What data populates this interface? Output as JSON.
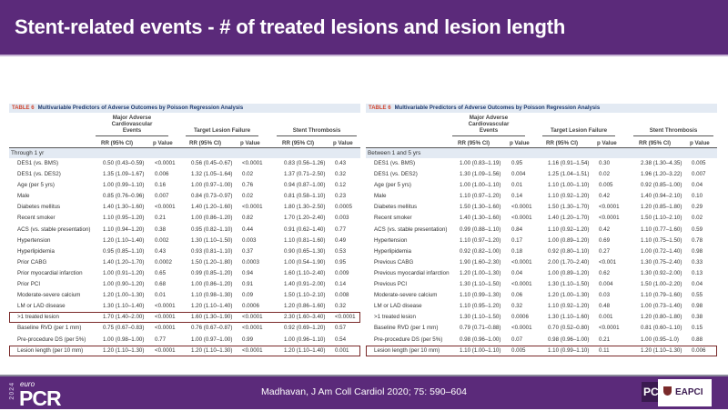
{
  "slide": {
    "title": "Stent-related events - # of treated lesions and lesion length",
    "citation": "Madhavan, J Am Coll Cardiol 2020; 75: 590–604",
    "logo_year": "2024",
    "logo_euro": "euro",
    "logo_pcr": "PCR",
    "pcr_badge": "PCR",
    "eapci": "EAPCI"
  },
  "tables": [
    {
      "table_no": "TABLE 6",
      "title": "Multivariable Predictors of Adverse Outcomes by Poisson Regression Analysis",
      "groups": [
        "Major Adverse Cardiovascular Events",
        "Target Lesion Failure",
        "Stent Thrombosis"
      ],
      "subheaders": [
        "RR (95% CI)",
        "p Value",
        "RR (95% CI)",
        "p Value",
        "RR (95% CI)",
        "p Value"
      ],
      "section": "Through 1 yr",
      "highlight": [
        13,
        16
      ],
      "rows": [
        [
          "DES1 (vs. BMS)",
          "0.50 (0.43–0.59)",
          "<0.0001",
          "0.56 (0.45–0.67)",
          "<0.0001",
          "0.83 (0.56–1.26)",
          "0.43"
        ],
        [
          "DES1 (vs. DES2)",
          "1.35 (1.09–1.67)",
          "0.006",
          "1.32 (1.05–1.64)",
          "0.02",
          "1.37 (0.71–2.50)",
          "0.32"
        ],
        [
          "Age (per 5 yrs)",
          "1.00 (0.99–1.10)",
          "0.16",
          "1.00 (0.97–1.00)",
          "0.76",
          "0.94 (0.87–1.00)",
          "0.12"
        ],
        [
          "Male",
          "0.85 (0.76–0.96)",
          "0.007",
          "0.84 (0.73–0.97)",
          "0.02",
          "0.81 (0.58–1.10)",
          "0.23"
        ],
        [
          "Diabetes mellitus",
          "1.40 (1.30–1.60)",
          "<0.0001",
          "1.40 (1.20–1.60)",
          "<0.0001",
          "1.80 (1.30–2.50)",
          "0.0005"
        ],
        [
          "Recent smoker",
          "1.10 (0.95–1.20)",
          "0.21",
          "1.00 (0.86–1.20)",
          "0.82",
          "1.70 (1.20–2.40)",
          "0.003"
        ],
        [
          "ACS (vs. stable presentation)",
          "1.10 (0.94–1.20)",
          "0.38",
          "0.95 (0.82–1.10)",
          "0.44",
          "0.91 (0.62–1.40)",
          "0.77"
        ],
        [
          "Hypertension",
          "1.20 (1.10–1.40)",
          "0.002",
          "1.30 (1.10–1.50)",
          "0.003",
          "1.10 (0.81–1.60)",
          "0.49"
        ],
        [
          "Hyperlipidemia",
          "0.95 (0.85–1.10)",
          "0.43",
          "0.93 (0.81–1.10)",
          "0.37",
          "0.90 (0.65–1.30)",
          "0.53"
        ],
        [
          "Prior CABG",
          "1.40 (1.20–1.70)",
          "0.0002",
          "1.50 (1.20–1.80)",
          "0.0003",
          "1.00 (0.54–1.90)",
          "0.95"
        ],
        [
          "Prior myocardial infarction",
          "1.00 (0.91–1.20)",
          "0.65",
          "0.99 (0.85–1.20)",
          "0.94",
          "1.60 (1.10–2.40)",
          "0.009"
        ],
        [
          "Prior PCI",
          "1.00 (0.90–1.20)",
          "0.68",
          "1.00 (0.86–1.20)",
          "0.91",
          "1.40 (0.91–2.00)",
          "0.14"
        ],
        [
          "Moderate-severe calcium",
          "1.20 (1.00–1.30)",
          "0.01",
          "1.10 (0.98–1.30)",
          "0.09",
          "1.50 (1.10–2.10)",
          "0.008"
        ],
        [
          "LM or LAD disease",
          "1.30 (1.10–1.40)",
          "<0.0001",
          "1.20 (1.10–1.40)",
          "0.0006",
          "1.20 (0.86–1.60)",
          "0.32"
        ],
        [
          ">1 treated lesion",
          "1.70 (1.40–2.00)",
          "<0.0001",
          "1.60 (1.30–1.90)",
          "<0.0001",
          "2.30 (1.60–3.40)",
          "<0.0001"
        ],
        [
          "Baseline RVD (per 1 mm)",
          "0.75 (0.67–0.83)",
          "<0.0001",
          "0.76 (0.67–0.87)",
          "<0.0001",
          "0.92 (0.69–1.20)",
          "0.57"
        ],
        [
          "Pre-procedure DS (per 5%)",
          "1.00 (0.98–1.00)",
          "0.77",
          "1.00 (0.97–1.00)",
          "0.99",
          "1.00 (0.96–1.10)",
          "0.54"
        ],
        [
          "Lesion length (per 10 mm)",
          "1.20 (1.10–1.30)",
          "<0.0001",
          "1.20 (1.10–1.30)",
          "<0.0001",
          "1.20 (1.10–1.40)",
          "0.001"
        ]
      ]
    },
    {
      "table_no": "TABLE 6",
      "title": "Multivariable Predictors of Adverse Outcomes by Poisson Regression Analysis",
      "groups": [
        "Major Adverse Cardiovascular Events",
        "Target Lesion Failure",
        "Stent Thrombosis"
      ],
      "subheaders": [
        "RR (95% CI)",
        "p Value",
        "RR (95% CI)",
        "p Value",
        "RR (95% CI)",
        "p Value"
      ],
      "section": "Between 1 and 5 yrs",
      "highlight": [
        16
      ],
      "rows": [
        [
          "DES1 (vs. BMS)",
          "1.00 (0.83–1.19)",
          "0.95",
          "1.16 (0.91–1.54)",
          "0.30",
          "2.38 (1.30–4.35)",
          "0.005"
        ],
        [
          "DES1 (vs. DES2)",
          "1.30 (1.09–1.56)",
          "0.004",
          "1.25 (1.04–1.51)",
          "0.02",
          "1.96 (1.20–3.22)",
          "0.007"
        ],
        [
          "Age (per 5 yrs)",
          "1.00 (1.00–1.10)",
          "0.01",
          "1.10 (1.00–1.10)",
          "0.005",
          "0.92 (0.85–1.00)",
          "0.04"
        ],
        [
          "Male",
          "1.10 (0.97–1.20)",
          "0.14",
          "1.10 (0.92–1.20)",
          "0.42",
          "1.40 (0.94–2.10)",
          "0.10"
        ],
        [
          "Diabetes mellitus",
          "1.50 (1.30–1.60)",
          "<0.0001",
          "1.50 (1.30–1.70)",
          "<0.0001",
          "1.20 (0.85–1.80)",
          "0.29"
        ],
        [
          "Recent smoker",
          "1.40 (1.30–1.60)",
          "<0.0001",
          "1.40 (1.20–1.70)",
          "<0.0001",
          "1.50 (1.10–2.10)",
          "0.02"
        ],
        [
          "ACS (vs. stable presentation)",
          "0.99 (0.88–1.10)",
          "0.84",
          "1.10 (0.92–1.20)",
          "0.42",
          "1.10 (0.77–1.60)",
          "0.59"
        ],
        [
          "Hypertension",
          "1.10 (0.97–1.20)",
          "0.17",
          "1.00 (0.89–1.20)",
          "0.69",
          "1.10 (0.75–1.50)",
          "0.78"
        ],
        [
          "Hyperlipidemia",
          "0.92 (0.82–1.00)",
          "0.18",
          "0.92 (0.80–1.10)",
          "0.27",
          "1.00 (0.72–1.40)",
          "0.98"
        ],
        [
          "Previous CABG",
          "1.90 (1.60–2.30)",
          "<0.0001",
          "2.00 (1.70–2.40)",
          "<0.001",
          "1.30 (0.75–2.40)",
          "0.33"
        ],
        [
          "Previous myocardial infarction",
          "1.20 (1.00–1.30)",
          "0.04",
          "1.00 (0.89–1.20)",
          "0.62",
          "1.30 (0.92–2.00)",
          "0.13"
        ],
        [
          "Previous PCI",
          "1.30 (1.10–1.50)",
          "<0.0001",
          "1.30 (1.10–1.50)",
          "0.004",
          "1.50 (1.00–2.20)",
          "0.04"
        ],
        [
          "Moderate-severe calcium",
          "1.10 (0.99–1.30)",
          "0.06",
          "1.20 (1.00–1.30)",
          "0.03",
          "1.10 (0.79–1.60)",
          "0.55"
        ],
        [
          "LM or LAD disease",
          "1.10 (0.95–1.20)",
          "0.32",
          "1.10 (0.92–1.20)",
          "0.48",
          "1.00 (0.73–1.40)",
          "0.98"
        ],
        [
          ">1 treated lesion",
          "1.30 (1.10–1.50)",
          "0.0006",
          "1.30 (1.10–1.60)",
          "0.001",
          "1.20 (0.80–1.80)",
          "0.38"
        ],
        [
          "Baseline RVD (per 1 mm)",
          "0.79 (0.71–0.88)",
          "<0.0001",
          "0.70 (0.52–0.80)",
          "<0.0001",
          "0.81 (0.60–1.10)",
          "0.15"
        ],
        [
          "Pre-procedure DS (per 5%)",
          "0.98 (0.96–1.00)",
          "0.07",
          "0.98 (0.96–1.00)",
          "0.21",
          "1.00 (0.95–1.0)",
          "0.88"
        ],
        [
          "Lesion length (per 10 mm)",
          "1.10 (1.00–1.10)",
          "0.005",
          "1.10 (0.99–1.10)",
          "0.11",
          "1.20 (1.10–1.30)",
          "0.006"
        ]
      ]
    }
  ]
}
